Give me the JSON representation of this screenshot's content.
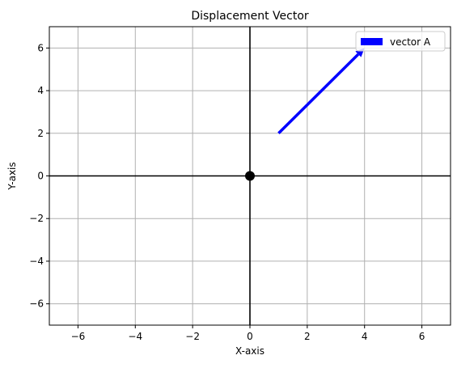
{
  "chart_data": {
    "type": "quiver",
    "title": "Displacement Vector",
    "xlabel": "X-axis",
    "ylabel": "Y-axis",
    "xlim": [
      -7,
      7
    ],
    "ylim": [
      -7,
      7
    ],
    "xticks": [
      -6,
      -4,
      -2,
      0,
      2,
      4,
      6
    ],
    "yticks": [
      -6,
      -4,
      -2,
      0,
      2,
      4,
      6
    ],
    "xtick_labels": [
      "−6",
      "−4",
      "−2",
      "0",
      "2",
      "4",
      "6"
    ],
    "ytick_labels": [
      "−6",
      "−4",
      "−2",
      "0",
      "2",
      "4",
      "6"
    ],
    "grid": true,
    "legend_position": "top-right",
    "origin_marker": {
      "x": 0,
      "y": 0,
      "color": "#000000"
    },
    "reference_lines": [
      {
        "orientation": "horizontal",
        "value": 0,
        "color": "#000000"
      },
      {
        "orientation": "vertical",
        "value": 0,
        "color": "#000000"
      }
    ],
    "series": [
      {
        "name": "vector A",
        "color": "#0000ff",
        "start": [
          1,
          2
        ],
        "end": [
          4,
          6
        ]
      }
    ]
  }
}
